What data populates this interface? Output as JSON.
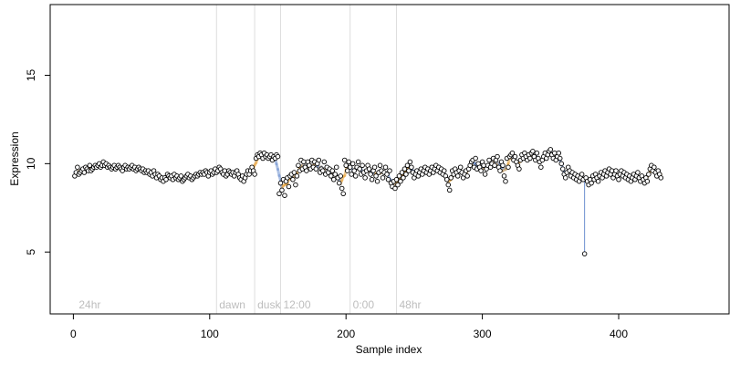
{
  "chart_data": {
    "type": "scatter",
    "title": "",
    "xlabel": "Sample index",
    "ylabel": "Expression",
    "xlim": [
      -17,
      481
    ],
    "ylim": [
      1.5,
      19.0
    ],
    "xticks": [
      0,
      100,
      200,
      300,
      400
    ],
    "yticks": [
      5,
      10,
      15
    ],
    "grid": false,
    "legend": "none",
    "marker": {
      "shape": "circle",
      "fill": "#ffffff",
      "stroke": "#000000"
    },
    "colors": {
      "smooth_up": "#e8a33a",
      "smooth_down": "#6b8fcf",
      "period_lines": "#dddddd",
      "period_labels": "#bdbdbd"
    },
    "period_markers": [
      {
        "x": 2,
        "label": "24hr",
        "line": false
      },
      {
        "x": 105,
        "label": "dawn",
        "line": true
      },
      {
        "x": 133,
        "label": "dusk",
        "line": true
      },
      {
        "x": 152,
        "label": "12:00",
        "line": true
      },
      {
        "x": 203,
        "label": "0:00",
        "line": true
      },
      {
        "x": 237,
        "label": "48hr",
        "line": true
      }
    ],
    "series": [
      {
        "x_start": 1,
        "values": [
          9.3,
          9.5,
          9.8,
          9.4,
          9.5,
          9.6,
          9.7,
          9.5,
          9.8,
          9.7,
          9.6,
          9.9,
          9.6,
          9.7,
          9.8,
          9.9,
          9.8,
          9.9,
          10.0,
          9.8,
          9.9,
          10.1,
          9.9,
          10.0,
          9.8,
          9.9,
          9.8,
          9.7,
          9.8,
          9.9,
          9.7,
          9.8,
          9.9,
          9.8,
          9.7,
          9.6,
          9.8,
          9.9,
          9.7,
          9.8,
          9.7,
          9.8,
          9.9,
          9.7,
          9.8,
          9.6,
          9.7,
          9.8,
          9.7,
          9.6,
          9.7,
          9.5,
          9.6,
          9.5,
          9.6,
          9.4,
          9.5,
          9.3,
          9.6,
          9.4,
          9.2,
          9.4,
          9.3,
          9.1,
          9.2,
          9.0,
          9.2,
          9.1,
          9.4,
          9.3,
          9.2,
          9.3,
          9.1,
          9.4,
          9.2,
          9.3,
          9.1,
          9.2,
          9.3,
          9.0,
          9.1,
          9.2,
          9.3,
          9.4,
          9.2,
          9.3,
          9.1,
          9.2,
          9.3,
          9.4,
          9.3,
          9.4,
          9.5,
          9.4,
          9.5,
          9.4,
          9.6,
          9.5,
          9.3,
          9.5,
          9.6,
          9.4,
          9.5,
          9.7,
          9.5,
          9.6,
          9.8,
          9.7,
          9.5,
          9.4,
          9.6,
          9.3,
          9.4,
          9.6,
          9.5,
          9.4,
          9.5,
          9.3,
          9.5,
          9.6,
          9.4,
          9.2,
          9.1,
          9.3,
          9.0,
          9.2,
          9.4,
          9.6,
          9.4,
          9.6,
          9.8,
          9.6,
          9.4,
          10.3,
          10.5,
          10.4,
          10.6,
          10.5,
          10.3,
          10.6,
          10.4,
          10.5,
          10.3,
          10.4,
          10.5,
          10.2,
          10.4,
          10.3,
          10.5,
          10.4,
          8.3,
          8.9,
          8.5,
          9.1,
          8.2,
          9.0,
          9.2,
          8.7,
          9.3,
          9.4,
          9.1,
          9.5,
          8.8,
          9.3,
          9.9,
          9.6,
          10.2,
          9.7,
          10.1,
          9.8,
          9.6,
          10.1,
          9.9,
          9.7,
          10.2,
          9.8,
          10.1,
          9.7,
          10.0,
          10.2,
          9.5,
          9.7,
          9.6,
          10.1,
          9.4,
          9.8,
          9.5,
          9.7,
          9.3,
          9.6,
          9.1,
          9.4,
          9.8,
          9.2,
          8.9,
          9.3,
          8.6,
          8.3,
          10.2,
          9.9,
          9.6,
          10.1,
          9.8,
          9.4,
          10.0,
          9.6,
          9.3,
          9.8,
          10.1,
          9.7,
          9.4,
          9.9,
          9.5,
          9.2,
          9.6,
          9.9,
          9.7,
          9.4,
          9.1,
          9.6,
          9.8,
          9.3,
          9.0,
          9.5,
          9.9,
          9.6,
          9.2,
          9.5,
          9.8,
          9.4,
          9.1,
          9.6,
          8.9,
          8.7,
          9.0,
          8.6,
          9.1,
          8.8,
          9.3,
          9.0,
          9.5,
          9.2,
          9.7,
          9.4,
          9.9,
          9.6,
          10.1,
          9.8,
          9.5,
          9.2,
          9.4,
          9.6,
          9.3,
          9.5,
          9.7,
          9.4,
          9.6,
          9.8,
          9.5,
          9.7,
          9.4,
          9.6,
          9.8,
          9.5,
          9.7,
          9.9,
          9.6,
          9.8,
          9.5,
          9.7,
          9.4,
          9.6,
          9.3,
          9.1,
          8.8,
          8.5,
          9.2,
          9.6,
          9.4,
          9.7,
          9.5,
          9.3,
          9.6,
          9.8,
          9.5,
          9.2,
          9.4,
          9.6,
          9.3,
          9.7,
          9.9,
          10.1,
          10.2,
          9.8,
          10.3,
          9.7,
          10.0,
          9.8,
          9.6,
          10.1,
          9.9,
          9.4,
          9.7,
          9.9,
          10.2,
          9.8,
          10.0,
          10.3,
          9.9,
          10.2,
          10.4,
          9.8,
          9.6,
          10.1,
          9.9,
          9.3,
          9.0,
          10.3,
          9.8,
          10.4,
          10.5,
          10.6,
          10.2,
          10.4,
          10.1,
          9.9,
          9.7,
          10.2,
          10.5,
          10.3,
          10.6,
          10.4,
          10.2,
          10.5,
          10.3,
          10.6,
          10.7,
          10.4,
          10.2,
          10.6,
          10.3,
          10.1,
          9.8,
          10.2,
          10.4,
          10.6,
          10.3,
          10.5,
          10.7,
          10.8,
          10.5,
          10.3,
          10.6,
          10.2,
          10.4,
          10.6,
          10.3,
          10.0,
          9.7,
          9.4,
          9.2,
          9.5,
          9.8,
          9.6,
          9.3,
          9.5,
          9.2,
          9.4,
          9.1,
          9.3,
          9.0,
          9.2,
          9.4,
          9.1,
          4.9,
          9.2,
          9.0,
          8.8,
          9.1,
          8.9,
          9.3,
          9.1,
          9.4,
          9.2,
          9.0,
          9.3,
          9.5,
          9.2,
          9.4,
          9.6,
          9.3,
          9.5,
          9.7,
          9.4,
          9.6,
          9.2,
          9.4,
          9.6,
          9.3,
          9.1,
          9.4,
          9.6,
          9.3,
          9.5,
          9.2,
          9.4,
          9.1,
          9.3,
          9.0,
          9.2,
          9.4,
          9.1,
          9.3,
          9.5,
          9.2,
          9.0,
          9.3,
          9.1,
          8.9,
          9.2,
          9.0,
          9.4,
          9.7,
          9.9,
          9.6,
          9.8,
          9.5,
          9.3,
          9.6,
          9.4,
          9.2
        ]
      }
    ]
  }
}
